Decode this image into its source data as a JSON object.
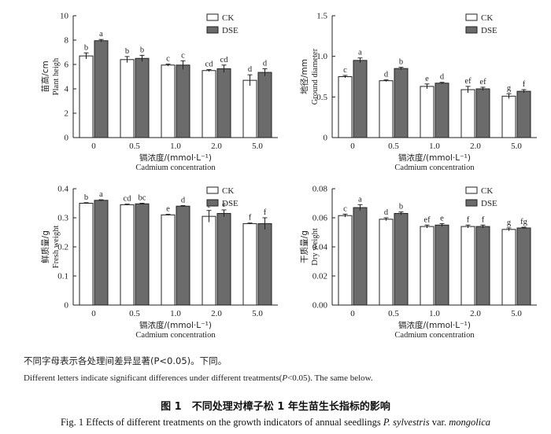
{
  "chart_data": [
    {
      "type": "bar",
      "categories": [
        "0",
        "0.5",
        "1.0",
        "2.0",
        "5.0"
      ],
      "ylabel_cn": "苗高/cm",
      "ylabel_en": "Plant heigh",
      "xlabel_cn": "镉浓度/(mmol·L⁻¹)",
      "xlabel_en": "Cadmium concentration",
      "ylim": [
        0,
        10
      ],
      "yticks": [
        "0",
        "2",
        "4",
        "6",
        "8",
        "10"
      ],
      "legend_position": "top-right",
      "series": [
        {
          "name": "CK",
          "values": [
            6.7,
            6.4,
            5.95,
            5.5,
            4.7
          ],
          "errors": [
            0.25,
            0.25,
            0.08,
            0.08,
            0.45
          ],
          "letters": [
            "b",
            "b",
            "c",
            "cd",
            "d"
          ]
        },
        {
          "name": "DSE",
          "values": [
            7.95,
            6.5,
            5.95,
            5.65,
            5.35
          ],
          "errors": [
            0.1,
            0.25,
            0.35,
            0.3,
            0.3
          ],
          "letters": [
            "a",
            "b",
            "c",
            "cd",
            "d"
          ]
        }
      ]
    },
    {
      "type": "bar",
      "categories": [
        "0",
        "0.5",
        "1.0",
        "2.0",
        "5.0"
      ],
      "ylabel_cn": "地径/mm",
      "ylabel_en": "Ground diameter",
      "xlabel_cn": "镉浓度/(mmol·L⁻¹)",
      "xlabel_en": "Cadmium concentration",
      "ylim": [
        0,
        1.5
      ],
      "yticks": [
        "0",
        "0.5",
        "1.0",
        "1.5"
      ],
      "legend_position": "top-right",
      "series": [
        {
          "name": "CK",
          "values": [
            0.75,
            0.7,
            0.63,
            0.59,
            0.51
          ],
          "errors": [
            0.015,
            0.01,
            0.03,
            0.04,
            0.03
          ],
          "letters": [
            "c",
            "d",
            "e",
            "ef",
            "g"
          ]
        },
        {
          "name": "DSE",
          "values": [
            0.95,
            0.85,
            0.67,
            0.6,
            0.57
          ],
          "errors": [
            0.03,
            0.015,
            0.01,
            0.02,
            0.02
          ],
          "letters": [
            "a",
            "b",
            "d",
            "ef",
            "f"
          ]
        }
      ]
    },
    {
      "type": "bar",
      "categories": [
        "0",
        "0.5",
        "1.0",
        "2.0",
        "5.0"
      ],
      "ylabel_cn": "鲜质量/g",
      "ylabel_en": "Fresh weight",
      "xlabel_cn": "镉浓度/(mmol·L⁻¹)",
      "xlabel_en": "Cadmium concentration",
      "ylim": [
        0,
        0.4
      ],
      "yticks": [
        "0",
        "0.1",
        "0.2",
        "0.3",
        "0.4"
      ],
      "legend_position": "top-right",
      "series": [
        {
          "name": "CK",
          "values": [
            0.35,
            0.345,
            0.31,
            0.305,
            0.28
          ],
          "errors": [
            0.002,
            0.002,
            0.002,
            0.02,
            0.002
          ],
          "letters": [
            "b",
            "cd",
            "e",
            "e",
            "f"
          ]
        },
        {
          "name": "DSE",
          "values": [
            0.36,
            0.348,
            0.34,
            0.315,
            0.28
          ],
          "errors": [
            0.002,
            0.002,
            0.002,
            0.012,
            0.02
          ],
          "letters": [
            "a",
            "bc",
            "d",
            "e",
            "f"
          ]
        }
      ]
    },
    {
      "type": "bar",
      "categories": [
        "0",
        "0.5",
        "1.0",
        "2.0",
        "5.0"
      ],
      "ylabel_cn": "干质量/g",
      "ylabel_en": "Dry weight",
      "xlabel_cn": "镉浓度/(mmol·L⁻¹)",
      "xlabel_en": "Cadmium concentration",
      "ylim": [
        0,
        0.08
      ],
      "yticks": [
        "0.00",
        "0.02",
        "0.04",
        "0.06",
        "0.08"
      ],
      "legend_position": "top-right",
      "series": [
        {
          "name": "CK",
          "values": [
            0.0615,
            0.059,
            0.054,
            0.054,
            0.052
          ],
          "errors": [
            0.001,
            0.001,
            0.001,
            0.001,
            0.001
          ],
          "letters": [
            "c",
            "d",
            "ef",
            "f",
            "g"
          ]
        },
        {
          "name": "DSE",
          "values": [
            0.067,
            0.063,
            0.055,
            0.054,
            0.053
          ],
          "errors": [
            0.002,
            0.001,
            0.001,
            0.001,
            0.0005
          ],
          "letters": [
            "a",
            "b",
            "e",
            "f",
            "fg"
          ]
        }
      ]
    }
  ],
  "colors": {
    "ck_fill": "#ffffff",
    "dse_fill": "#6b6b6b",
    "axis": "#222222"
  },
  "notes": {
    "cn": "不同字母表示各处理间差异显著(P<0.05)。下同。",
    "en_prefix": "Different letters indicate significant differences under different treatments(",
    "en_italic": "P",
    "en_suffix": "<0.05). The same below."
  },
  "figure": {
    "cn": "图 1　不同处理对樟子松 1 年生苗生长指标的影响",
    "en_prefix": "Fig. 1 Effects of different treatments on the growth indicators of annual seedlings ",
    "en_italic1": "P. sylvestris",
    "en_mid": " var. ",
    "en_italic2": "mongolica"
  }
}
